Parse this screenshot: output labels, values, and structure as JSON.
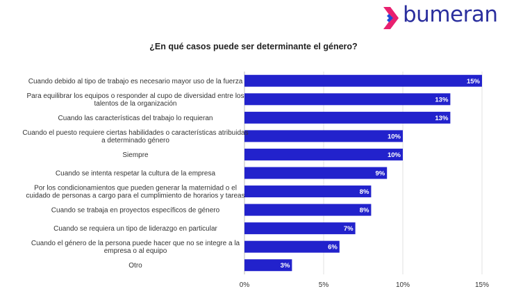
{
  "brand": {
    "name": "bumeran"
  },
  "colors": {
    "bar": "#2222cc",
    "logo_pink": "#e8206f",
    "logo_blue": "#1e4ad6",
    "text": "#2b2f9e"
  },
  "chart_data": {
    "type": "bar",
    "orientation": "horizontal",
    "title": "¿En qué casos puede ser determinante el género?",
    "categories": [
      [
        "Cuando debido al tipo de trabajo es necesario mayor uso de la fuerza"
      ],
      [
        "Para equilibrar los equipos o responder al cupo de diversidad entre los",
        "talentos de la organización"
      ],
      [
        "Cuando las características del trabajo lo requieran"
      ],
      [
        "Cuando el puesto requiere ciertas habilidades o características atribuidas",
        "a determinado género"
      ],
      [
        "Siempre"
      ],
      [
        "Cuando se intenta respetar la cultura de la empresa"
      ],
      [
        "Por los condicionamientos que pueden generar la maternidad o el",
        "cuidado de personas a cargo para el cumplimiento de horarios y tareas"
      ],
      [
        "Cuando se trabaja en proyectos específicos de género"
      ],
      [
        "Cuando se requiera un tipo de liderazgo en particular"
      ],
      [
        "Cuando el género de la persona puede hacer que no se integre a la",
        "empresa o al equipo"
      ],
      [
        "Otro"
      ]
    ],
    "values": [
      15,
      13,
      13,
      10,
      10,
      9,
      8,
      8,
      7,
      6,
      3
    ],
    "value_labels": [
      "15%",
      "13%",
      "13%",
      "10%",
      "10%",
      "9%",
      "8%",
      "8%",
      "7%",
      "6%",
      "3%"
    ],
    "xlim": [
      0,
      15
    ],
    "xticks": [
      0,
      5,
      10,
      15
    ],
    "xtick_labels": [
      "0%",
      "5%",
      "10%",
      "15%"
    ],
    "grid": true
  }
}
